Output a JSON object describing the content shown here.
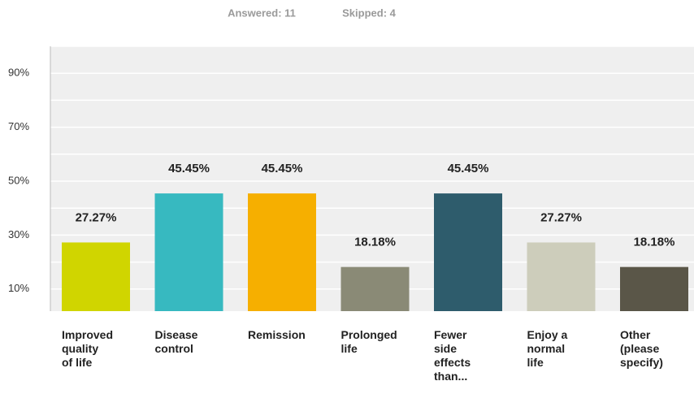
{
  "chart_data": {
    "type": "bar",
    "answered": "Answered: 11",
    "skipped": "Skipped: 4",
    "categories": [
      "Improved\nquality\nof life",
      "Disease\ncontrol",
      "Remission",
      "Prolonged\nlife",
      "Fewer\nside\neffects\nthan...",
      "Enjoy a\nnormal\nlife",
      "Other\n(please\nspecify)"
    ],
    "values": [
      27.27,
      45.45,
      45.45,
      18.18,
      45.45,
      27.27,
      18.18
    ],
    "value_labels": [
      "27.27%",
      "45.45%",
      "45.45%",
      "18.18%",
      "45.45%",
      "27.27%",
      "18.18%"
    ],
    "colors": [
      "#d0d500",
      "#37b9c0",
      "#f6af00",
      "#8a8a76",
      "#2e5c6c",
      "#cdcdbb",
      "#5a5648"
    ],
    "ylim": [
      0,
      100
    ],
    "yticks": [
      {
        "value": 10,
        "label": "10%"
      },
      {
        "value": 30,
        "label": "30%"
      },
      {
        "value": 50,
        "label": "50%"
      },
      {
        "value": 70,
        "label": "70%"
      },
      {
        "value": 90,
        "label": "90%"
      }
    ],
    "minor_yticks": [
      20,
      40,
      60,
      80,
      100
    ],
    "grid": true
  }
}
